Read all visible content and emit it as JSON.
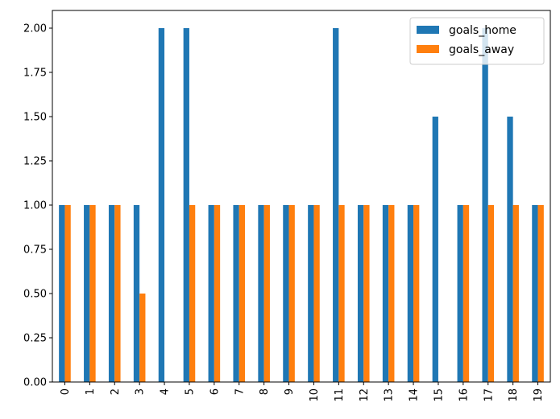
{
  "chart_data": {
    "type": "bar",
    "title": "",
    "xlabel": "",
    "ylabel": "",
    "categories": [
      "0",
      "1",
      "2",
      "3",
      "4",
      "5",
      "6",
      "7",
      "8",
      "9",
      "10",
      "11",
      "12",
      "13",
      "14",
      "15",
      "16",
      "17",
      "18",
      "19"
    ],
    "series": [
      {
        "name": "goals_home",
        "color": "#1f77b4",
        "values": [
          1,
          1,
          1,
          1,
          2,
          2,
          1,
          1,
          1,
          1,
          1,
          2,
          1,
          1,
          1,
          1.5,
          1,
          2,
          1.5,
          1
        ]
      },
      {
        "name": "goals_away",
        "color": "#ff7f0e",
        "values": [
          1,
          1,
          1,
          0.5,
          0,
          1,
          1,
          1,
          1,
          1,
          1,
          1,
          1,
          1,
          1,
          0,
          1,
          1,
          1,
          1
        ]
      }
    ],
    "ylim": [
      0,
      2.1
    ],
    "yticks": [
      "0.00",
      "0.25",
      "0.50",
      "0.75",
      "1.00",
      "1.25",
      "1.50",
      "1.75",
      "2.00"
    ],
    "grid": false,
    "legend_position": "top-right"
  }
}
